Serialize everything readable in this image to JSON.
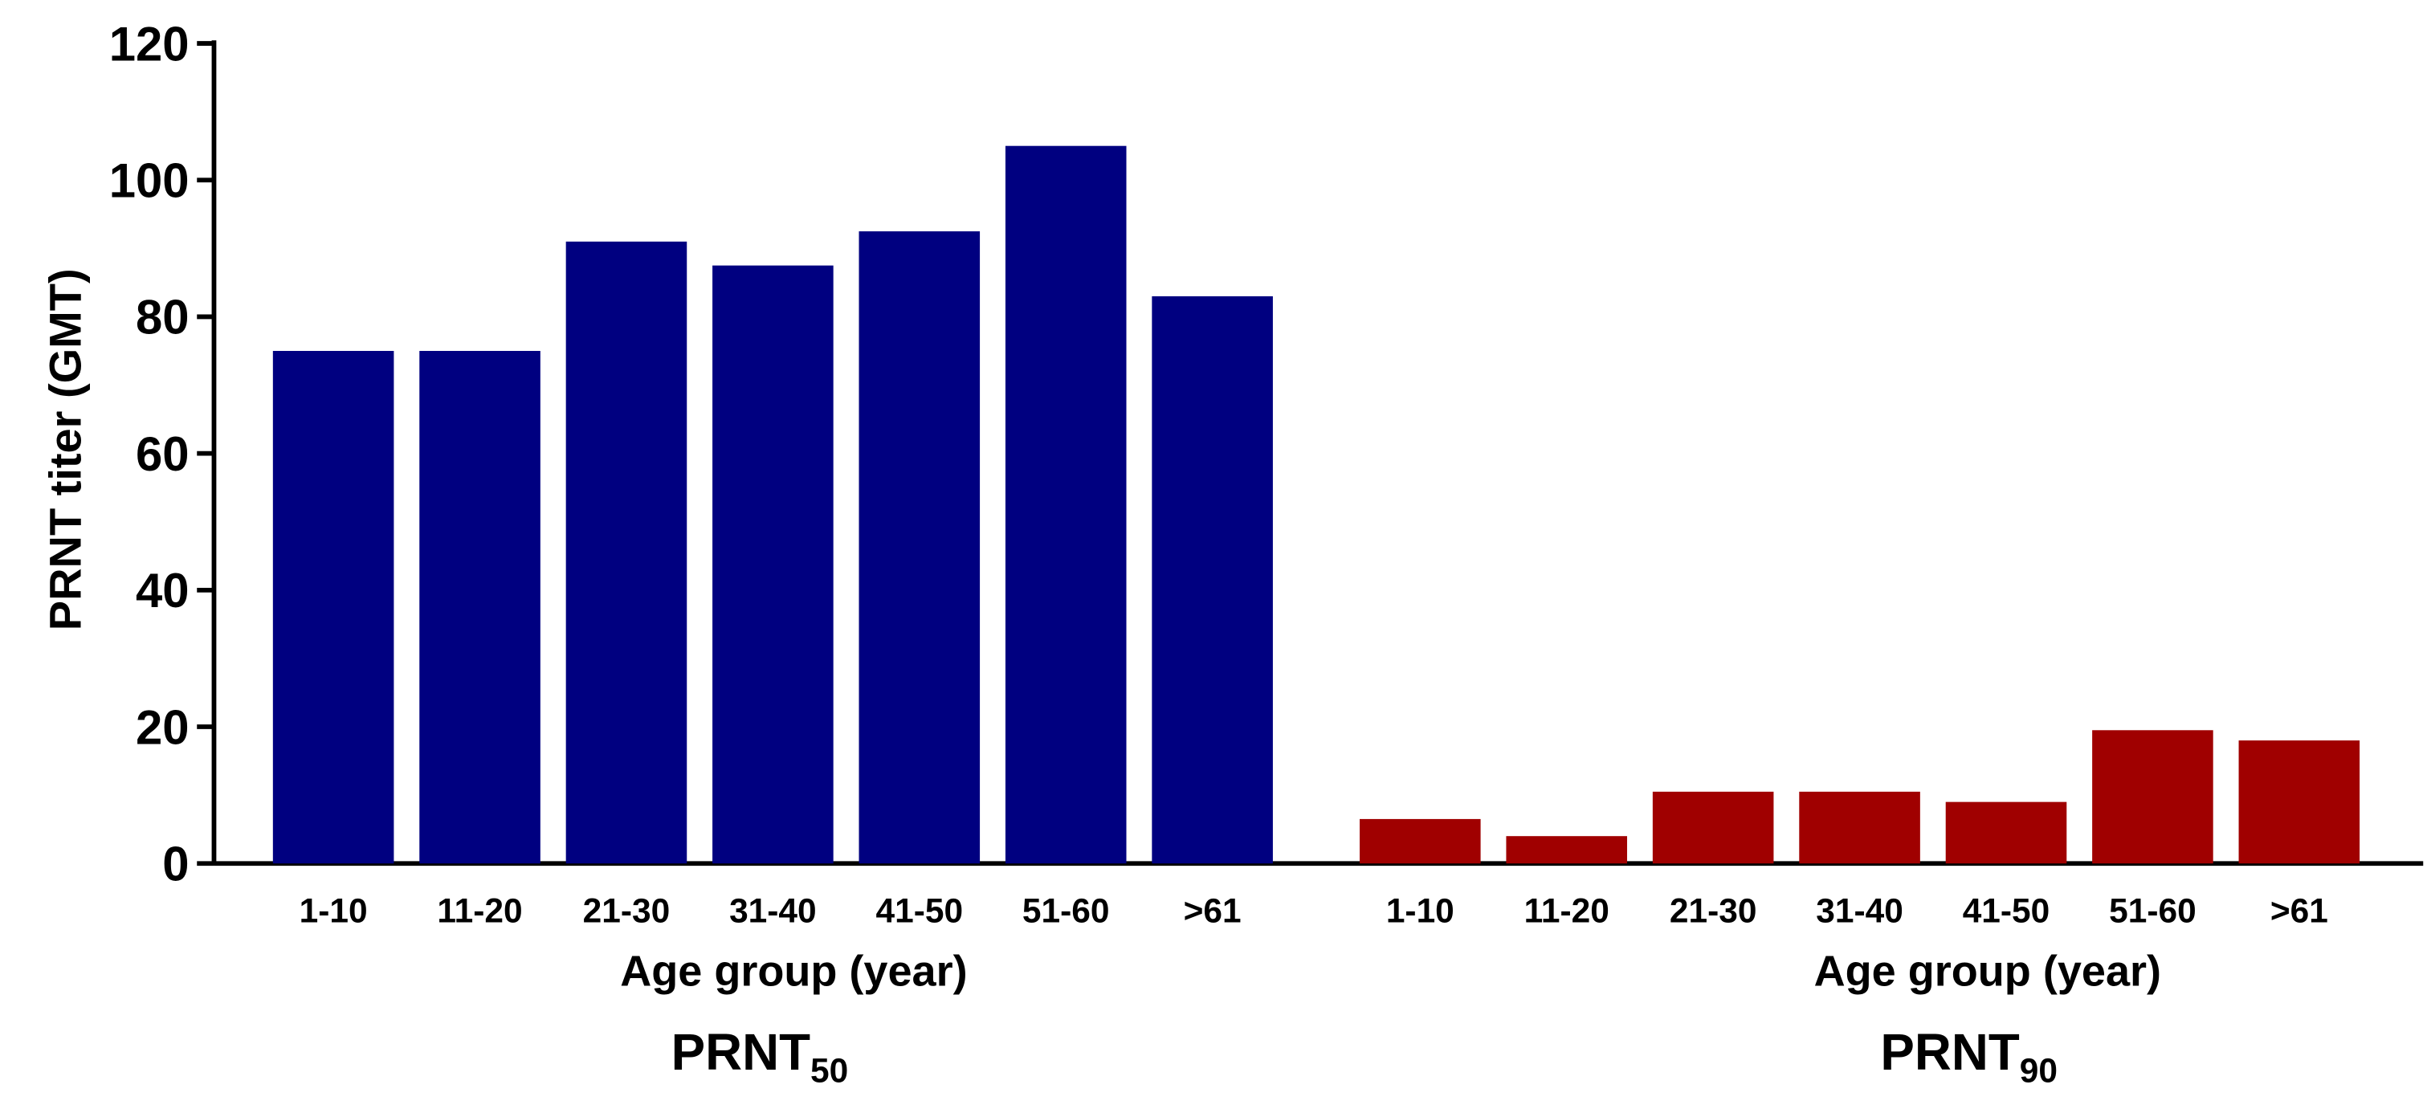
{
  "chart_data": {
    "type": "bar",
    "ylabel": "PRNT titer (GMT)",
    "ylim": [
      0,
      120
    ],
    "yticks": [
      0,
      20,
      40,
      60,
      80,
      100,
      120
    ],
    "groups": [
      {
        "label": "PRNT",
        "subscript": "50",
        "xlabel": "Age group (year)",
        "color": "#000080",
        "categories": [
          "1-10",
          "11-20",
          "21-30",
          "31-40",
          "41-50",
          "51-60",
          ">61"
        ],
        "values": [
          75,
          75,
          91,
          87.5,
          92.5,
          105,
          83
        ]
      },
      {
        "label": "PRNT",
        "subscript": "90",
        "xlabel": "Age group (year)",
        "color": "#a00000",
        "categories": [
          "1-10",
          "11-20",
          "21-30",
          "31-40",
          "41-50",
          "51-60",
          ">61"
        ],
        "values": [
          6.5,
          4,
          10.5,
          10.5,
          9,
          19.5,
          18
        ]
      }
    ]
  }
}
